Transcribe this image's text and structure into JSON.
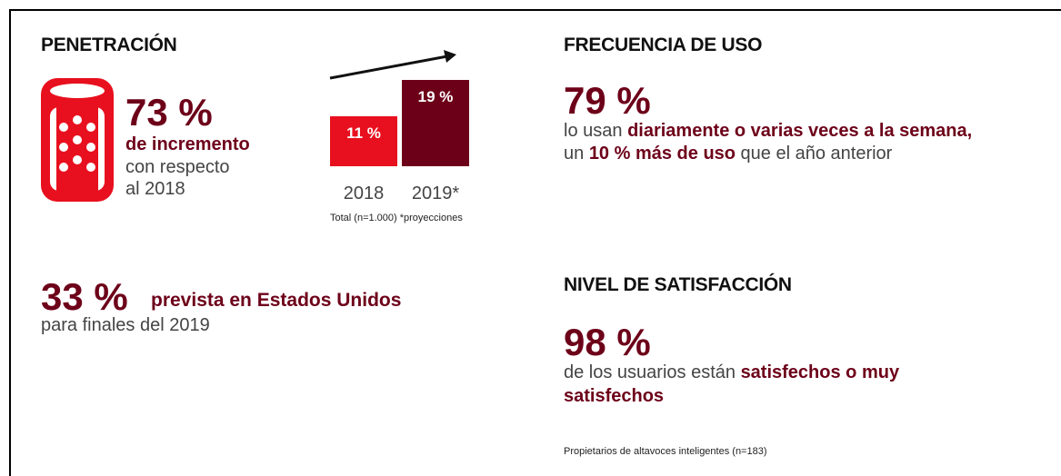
{
  "penetracion": {
    "title": "PENETRACIÓN",
    "value_text": "73 %",
    "lines": [
      "de incremento",
      "con respecto",
      "al 2018"
    ]
  },
  "chart_data": {
    "type": "bar",
    "categories": [
      "2018",
      "2019*"
    ],
    "values": [
      11,
      19
    ],
    "value_labels": [
      "11 %",
      "19 %"
    ],
    "colors": [
      "#e8101e",
      "#6d0019"
    ],
    "note": "Total (n=1.000) *proyecciones"
  },
  "estados_unidos": {
    "value_text": "33 %",
    "bold": "prevista en Estados Unidos",
    "line2": "para finales del 2019"
  },
  "frecuencia": {
    "title": "FRECUENCIA DE USO",
    "value_text": "79 %",
    "line1": [
      "lo usan ",
      "diariamente o varias veces a la semana,"
    ],
    "line2": [
      "un ",
      "10 % más de uso",
      " que el año anterior"
    ]
  },
  "satisfaccion": {
    "title": "NIVEL DE SATISFACCIÓN",
    "value_text": "98 %",
    "line1": [
      "de los usuarios están ",
      "satisfechos o muy"
    ],
    "line2": "satisfechos",
    "note": "Propietarios de altavoces inteligentes (n=183)"
  }
}
